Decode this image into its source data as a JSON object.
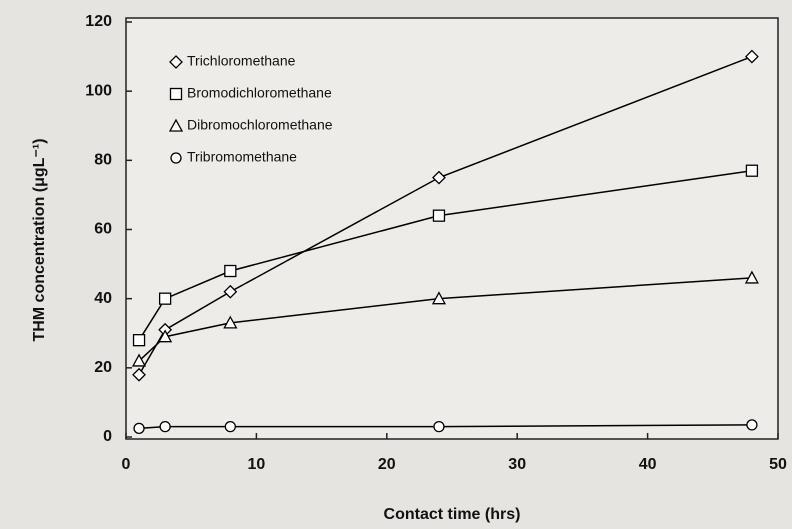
{
  "chart_data": {
    "type": "line",
    "x_label": "Contact time (hrs)",
    "y_label": "THM concentration (μgL⁻¹)",
    "xlim": [
      0,
      50
    ],
    "xticks": [
      0,
      10,
      20,
      30,
      40,
      50
    ],
    "ylim": [
      0,
      120
    ],
    "yticks": [
      0,
      20,
      40,
      60,
      80,
      100,
      120
    ],
    "legend": "top-left",
    "series": [
      {
        "name": "Trichloromethane",
        "color": "#000000",
        "marker": "diamond",
        "x": [
          1,
          3,
          8,
          24,
          48
        ],
        "values": [
          18,
          31,
          42,
          75,
          110
        ]
      },
      {
        "name": "Bromodichloromethane",
        "color": "#000000",
        "marker": "square",
        "x": [
          1,
          3,
          8,
          24,
          48
        ],
        "values": [
          28,
          40,
          48,
          64,
          77
        ]
      },
      {
        "name": "Dibromochloromethane",
        "color": "#000000",
        "marker": "triangle",
        "x": [
          1,
          3,
          8,
          24,
          48
        ],
        "values": [
          22,
          29,
          33,
          40,
          46
        ]
      },
      {
        "name": "Tribromomethane",
        "color": "#000000",
        "marker": "circle",
        "x": [
          1,
          3,
          8,
          24,
          48
        ],
        "values": [
          2.5,
          3,
          3,
          3,
          3.5
        ]
      }
    ]
  }
}
